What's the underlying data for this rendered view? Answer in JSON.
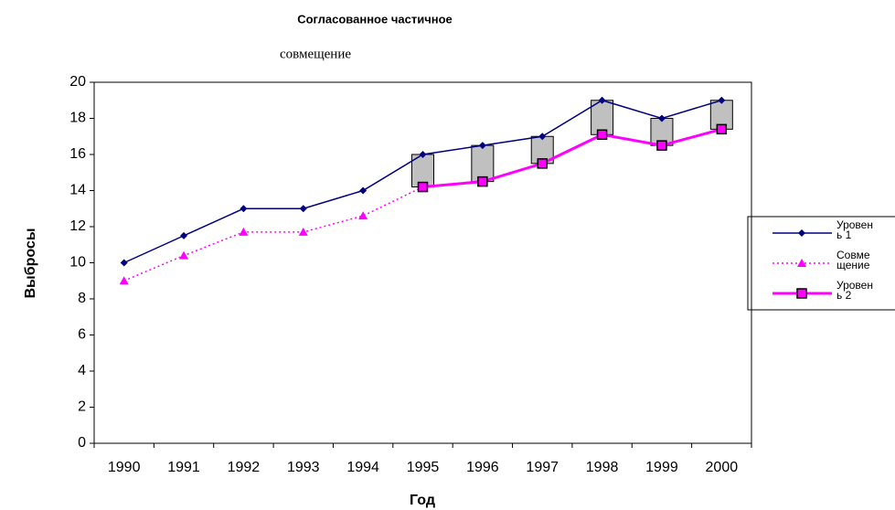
{
  "chart_data": {
    "type": "line",
    "title": "Согласованное частичное",
    "subtitle": "совмещение",
    "x_label": "Год",
    "y_label": "Выбросы",
    "categories": [
      "1990",
      "1991",
      "1992",
      "1993",
      "1994",
      "1995",
      "1996",
      "1997",
      "1998",
      "1999",
      "2000"
    ],
    "series": [
      {
        "name": "Уровень 1",
        "color": "#000080",
        "marker": "diamond",
        "dash": "solid",
        "values": [
          10,
          11.5,
          13,
          13,
          14,
          16,
          16.5,
          17,
          19,
          18,
          19
        ]
      },
      {
        "name": "Совмещение",
        "color": "#ff00ff",
        "marker": "triangle",
        "dash": "dotted",
        "values": [
          9,
          10.4,
          11.7,
          11.7,
          12.6,
          14.2,
          14.5,
          15.5,
          17.1,
          16.5,
          17.4
        ]
      },
      {
        "name": "Уровень 2",
        "color": "#ff00ff",
        "marker": "square",
        "dash": "solid",
        "values": [
          null,
          null,
          null,
          null,
          null,
          14.2,
          14.5,
          15.5,
          17.1,
          16.5,
          17.4
        ]
      }
    ],
    "up_down_bars": true,
    "bar_color": "#c0c0c0",
    "ylim": [
      0,
      20
    ],
    "yticks": [
      0,
      2,
      4,
      6,
      8,
      10,
      12,
      14,
      16,
      18,
      20
    ],
    "legend": "right"
  }
}
